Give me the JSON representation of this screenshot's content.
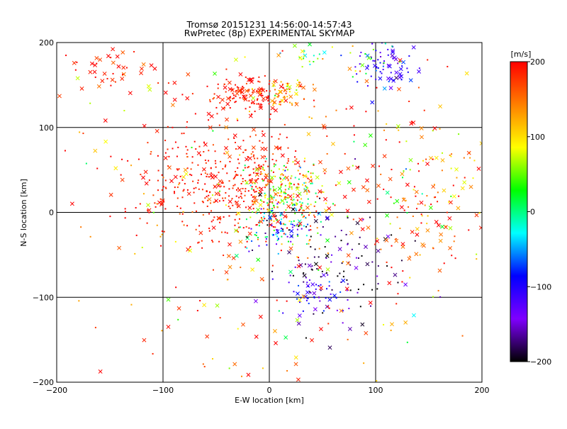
{
  "chart_data": {
    "type": "scatter",
    "title": "Tromsø 20151231 14:56:00-14:57:43",
    "subtitle": "RwPretec (8p) EXPERIMENTAL SKYMAP",
    "xlabel": "E-W location [km]",
    "ylabel": "N-S location [km]",
    "xlim": [
      -200,
      200
    ],
    "ylim": [
      -200,
      200
    ],
    "xticks": [
      -200,
      -100,
      0,
      100,
      200
    ],
    "yticks": [
      -200,
      -100,
      0,
      100,
      200
    ],
    "grid": true,
    "colorbar": {
      "label": "[m/s]",
      "min": -200,
      "max": 200,
      "ticks": [
        200,
        100,
        0,
        -100,
        -200
      ],
      "colors": [
        "#000000",
        "#7f00ff",
        "#0000ff",
        "#00ffff",
        "#00ff00",
        "#ffff00",
        "#ff7f00",
        "#ff0000"
      ]
    },
    "marker_types": [
      "cross",
      "dot"
    ],
    "clusters": [
      {
        "x": -20,
        "y": 140,
        "sx": 22,
        "sy": 10,
        "n": 130,
        "v": 190,
        "vs": 15,
        "cross": 0.35
      },
      {
        "x": 15,
        "y": 140,
        "sx": 15,
        "sy": 10,
        "n": 60,
        "v": 120,
        "vs": 40,
        "cross": 0.3
      },
      {
        "x": -150,
        "y": 170,
        "sx": 25,
        "sy": 15,
        "n": 45,
        "v": 190,
        "vs": 20,
        "cross": 0.6
      },
      {
        "x": 110,
        "y": 170,
        "sx": 14,
        "sy": 14,
        "n": 75,
        "v": -110,
        "vs": 25,
        "cross": 0.3
      },
      {
        "x": 60,
        "y": 185,
        "sx": 30,
        "sy": 10,
        "n": 40,
        "v": 40,
        "vs": 50,
        "cross": 0.2
      },
      {
        "x": -40,
        "y": 30,
        "sx": 40,
        "sy": 35,
        "n": 420,
        "v": 190,
        "vs": 15,
        "cross": 0.15
      },
      {
        "x": 15,
        "y": 25,
        "sx": 18,
        "sy": 20,
        "n": 200,
        "v": 70,
        "vs": 70,
        "cross": 0.1
      },
      {
        "x": 10,
        "y": -20,
        "sx": 14,
        "sy": 12,
        "n": 90,
        "v": -60,
        "vs": 60,
        "cross": 0.1
      },
      {
        "x": 60,
        "y": -60,
        "sx": 35,
        "sy": 40,
        "n": 120,
        "v": -180,
        "vs": 30,
        "cross": 0.25
      },
      {
        "x": 45,
        "y": -95,
        "sx": 18,
        "sy": 12,
        "n": 50,
        "v": -110,
        "vs": 30,
        "cross": 0.2
      },
      {
        "x": 150,
        "y": 30,
        "sx": 35,
        "sy": 50,
        "n": 150,
        "v": 150,
        "vs": 80,
        "cross": 0.4
      },
      {
        "x": 0,
        "y": 0,
        "sx": 110,
        "sy": 110,
        "n": 360,
        "v": 150,
        "vs": 70,
        "cross": 0.45
      }
    ]
  }
}
